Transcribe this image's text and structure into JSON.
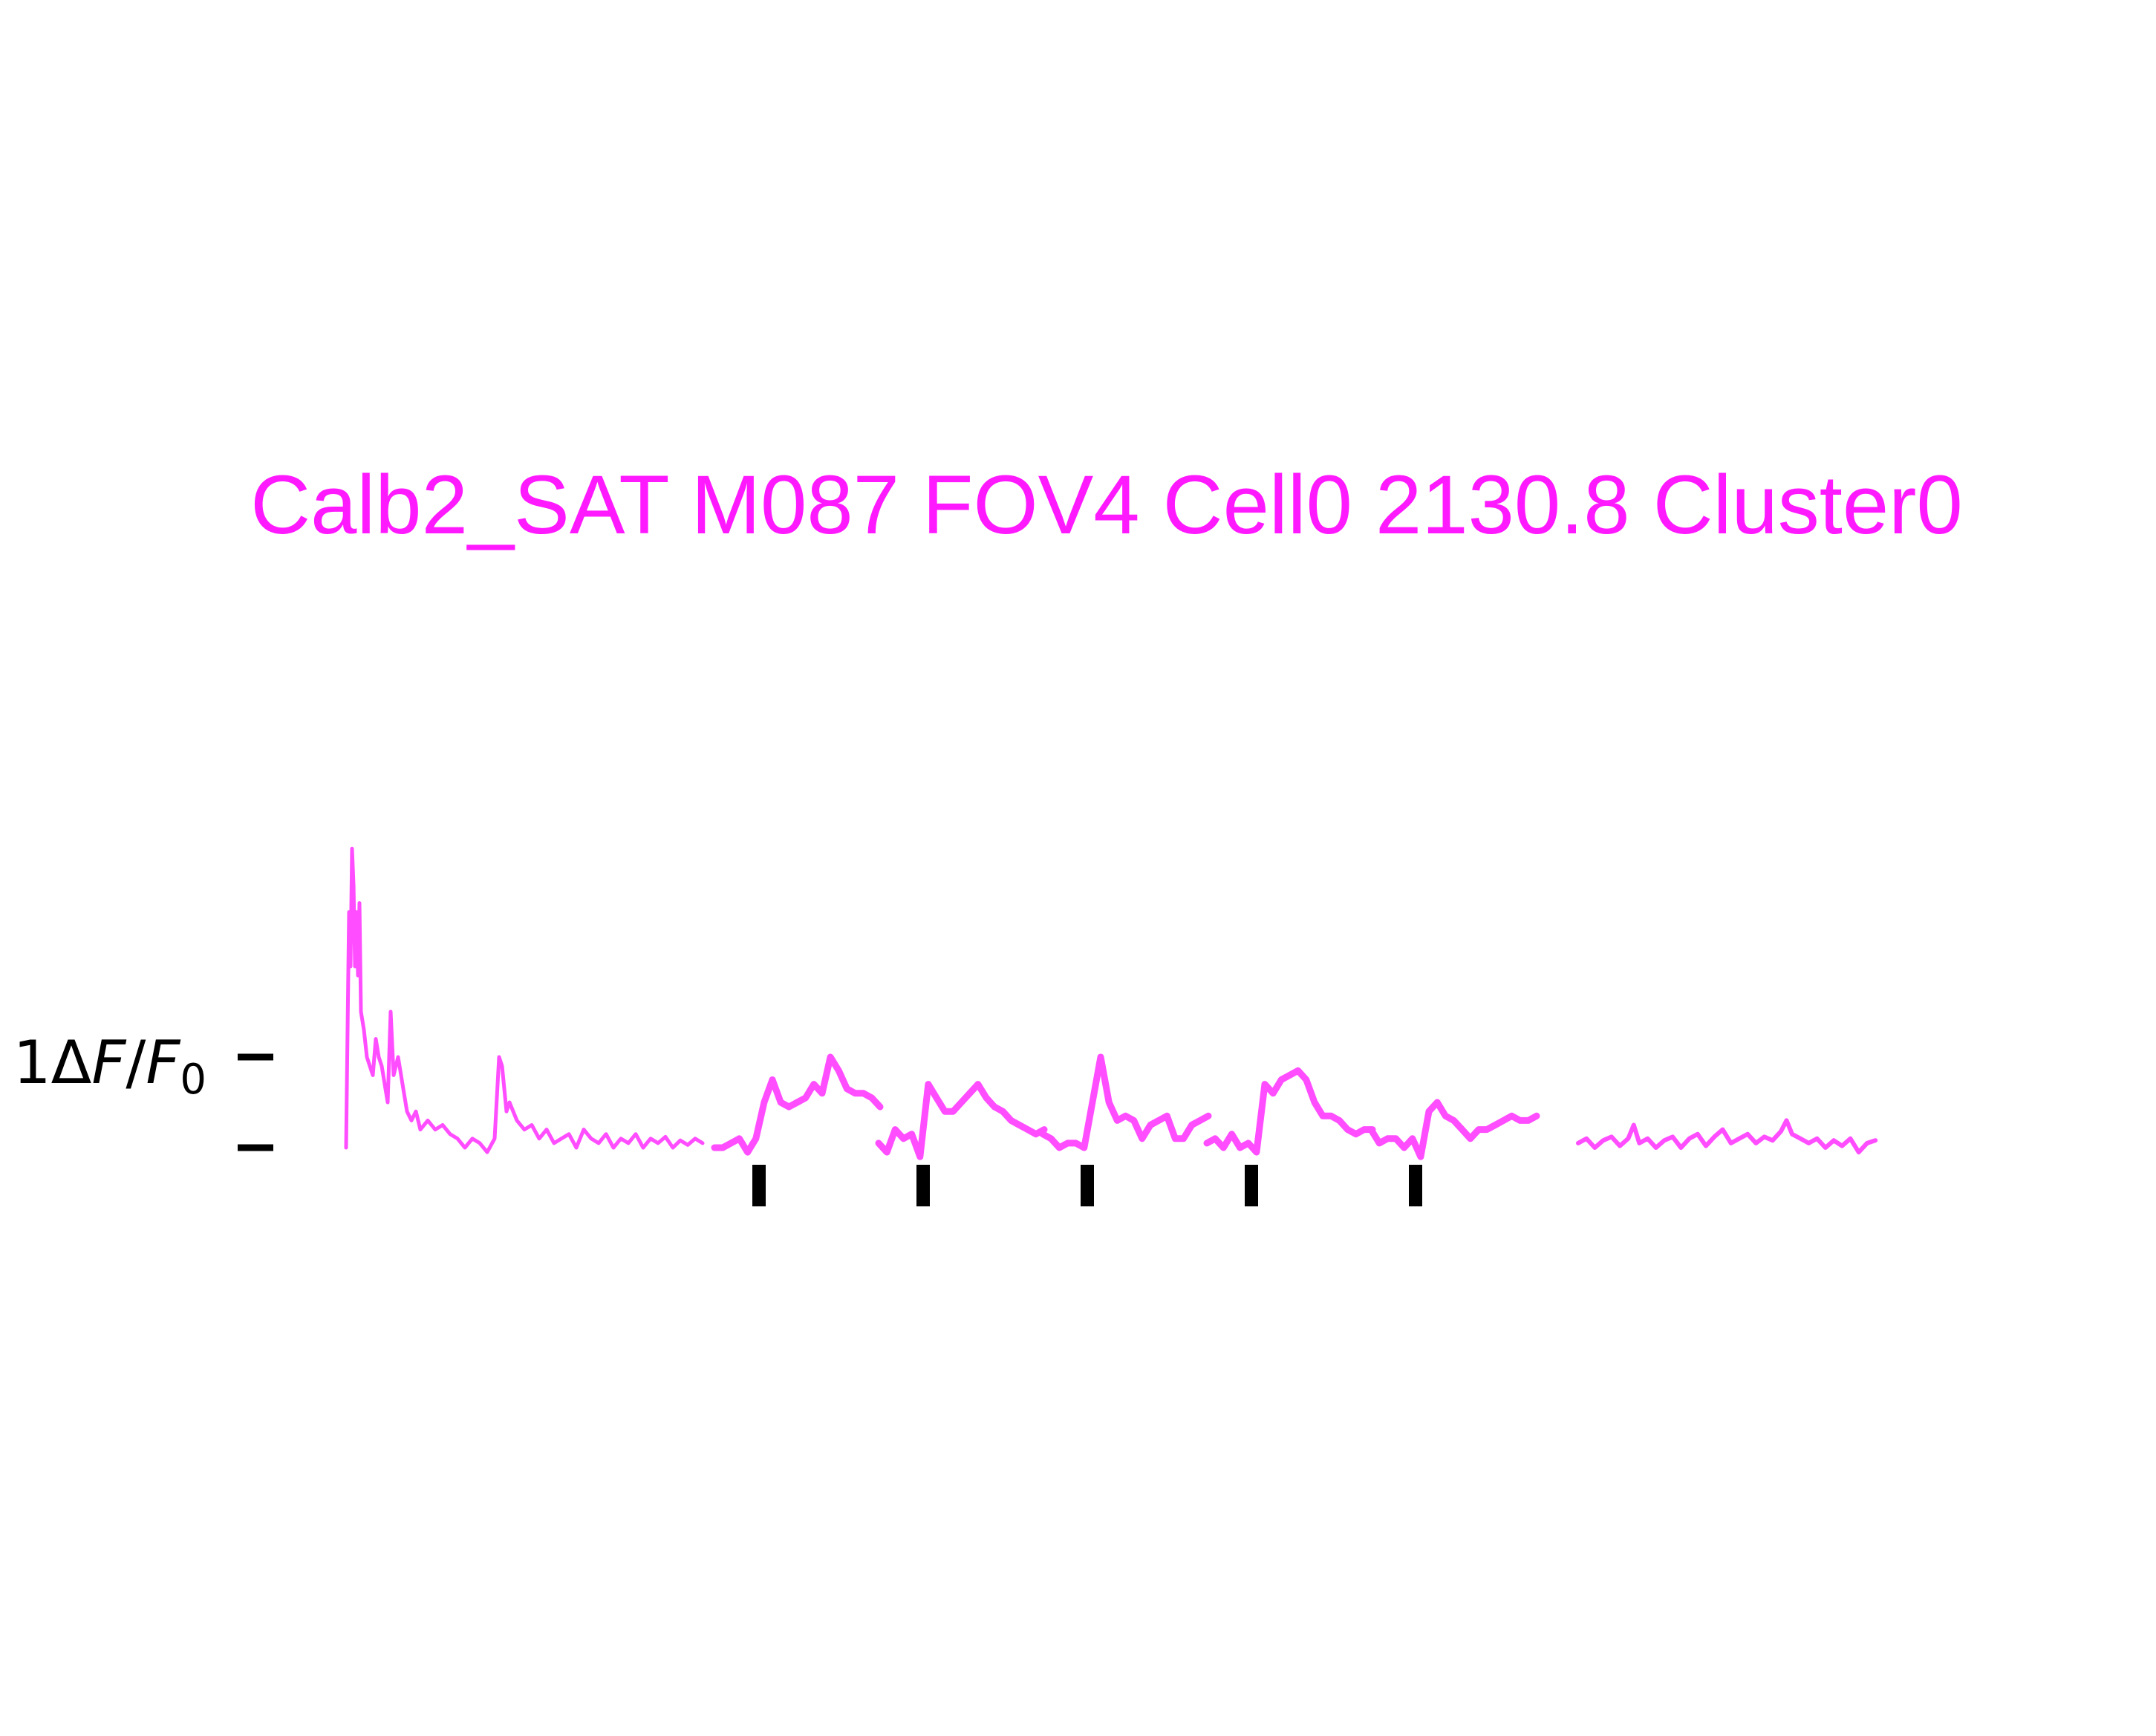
{
  "chart_data": {
    "type": "line",
    "title": "Calb2_SAT M087 FOV4 Cell0 2130.8 Cluster0",
    "ylabel": {
      "prefix": "1",
      "delta": "Δ",
      "num": "F",
      "slash": "/",
      "den": "F",
      "sub": "0"
    },
    "ylim": [
      -0.3,
      2.75
    ],
    "scale_bar": {
      "bottom": 0,
      "top": 1
    },
    "grid": false,
    "legend": "none",
    "colors": {
      "title": "#ff19ff",
      "trace": "#ff4dff",
      "marks": "#000000"
    },
    "stimulus_marks_count": 5,
    "series": [
      {
        "segment": "baseline-pre",
        "x": [
          0,
          2,
          3,
          4,
          5,
          6,
          7,
          8,
          9,
          10,
          12,
          14,
          16,
          18,
          20,
          22,
          24,
          26,
          28,
          30,
          32,
          35,
          38,
          41,
          44,
          47,
          50,
          55,
          60,
          65,
          70,
          75,
          80,
          85,
          90,
          95,
          100,
          103,
          105,
          108,
          110,
          115,
          120,
          125,
          130,
          135,
          140,
          145,
          150,
          155,
          160,
          165,
          170,
          175,
          180,
          185,
          190,
          195,
          200,
          205,
          210,
          215,
          220,
          225,
          230,
          235,
          240
        ],
        "y": [
          0,
          2.6,
          2.0,
          3.3,
          2.9,
          2.0,
          2.6,
          1.9,
          2.7,
          1.5,
          1.3,
          1.0,
          0.9,
          0.8,
          1.2,
          1.0,
          0.9,
          0.7,
          0.5,
          1.5,
          0.8,
          1.0,
          0.7,
          0.4,
          0.3,
          0.4,
          0.2,
          0.3,
          0.2,
          0.25,
          0.15,
          0.1,
          0.0,
          0.1,
          0.05,
          -0.05,
          0.1,
          1.0,
          0.9,
          0.4,
          0.5,
          0.3,
          0.2,
          0.25,
          0.1,
          0.2,
          0.05,
          0.1,
          0.15,
          0.0,
          0.2,
          0.1,
          0.05,
          0.15,
          0.0,
          0.1,
          0.05,
          0.15,
          0.0,
          0.1,
          0.05,
          0.12,
          0.0,
          0.08,
          0.03,
          0.1,
          0.05
        ]
      },
      {
        "segment": "trial-1",
        "x": [
          0,
          5,
          10,
          15,
          20,
          25,
          30,
          35,
          40,
          45,
          50,
          55,
          60,
          65,
          70,
          75,
          80,
          85,
          90,
          95,
          100
        ],
        "y": [
          0,
          0.0,
          0.05,
          0.1,
          -0.05,
          0.1,
          0.5,
          0.75,
          0.5,
          0.45,
          0.5,
          0.55,
          0.7,
          0.6,
          1.0,
          0.85,
          0.65,
          0.6,
          0.6,
          0.55,
          0.45
        ]
      },
      {
        "segment": "trial-2",
        "x": [
          0,
          5,
          10,
          15,
          20,
          25,
          30,
          35,
          40,
          45,
          50,
          55,
          60,
          65,
          70,
          75,
          80,
          85,
          90,
          95,
          100
        ],
        "y": [
          0.05,
          -0.05,
          0.2,
          0.1,
          0.15,
          -0.1,
          0.7,
          0.55,
          0.4,
          0.4,
          0.5,
          0.6,
          0.7,
          0.55,
          0.45,
          0.4,
          0.3,
          0.25,
          0.2,
          0.15,
          0.2
        ]
      },
      {
        "segment": "trial-3",
        "x": [
          0,
          5,
          10,
          15,
          20,
          25,
          30,
          35,
          40,
          45,
          50,
          55,
          60,
          65,
          70,
          75,
          80,
          85,
          90,
          95,
          100
        ],
        "y": [
          0.15,
          0.1,
          0.0,
          0.05,
          0.05,
          0.0,
          0.5,
          1.0,
          0.5,
          0.3,
          0.35,
          0.3,
          0.1,
          0.25,
          0.3,
          0.35,
          0.1,
          0.1,
          0.25,
          0.3,
          0.35
        ]
      },
      {
        "segment": "trial-4",
        "x": [
          0,
          5,
          10,
          15,
          20,
          25,
          30,
          35,
          40,
          45,
          50,
          55,
          60,
          65,
          70,
          75,
          80,
          85,
          90,
          95,
          100
        ],
        "y": [
          0.05,
          0.1,
          0.0,
          0.15,
          0.0,
          0.05,
          -0.05,
          0.7,
          0.6,
          0.75,
          0.8,
          0.85,
          0.75,
          0.5,
          0.35,
          0.35,
          0.3,
          0.2,
          0.15,
          0.2,
          0.2
        ]
      },
      {
        "segment": "trial-5",
        "x": [
          0,
          5,
          10,
          15,
          20,
          25,
          30,
          35,
          40,
          45,
          50,
          55,
          60,
          65,
          70,
          75,
          80,
          85,
          90,
          95,
          100
        ],
        "y": [
          0.2,
          0.05,
          0.1,
          0.1,
          0.0,
          0.1,
          -0.1,
          0.4,
          0.5,
          0.35,
          0.3,
          0.2,
          0.1,
          0.2,
          0.2,
          0.25,
          0.3,
          0.35,
          0.3,
          0.3,
          0.35
        ]
      },
      {
        "segment": "baseline-post",
        "x": [
          0,
          6,
          12,
          18,
          24,
          30,
          36,
          40,
          44,
          50,
          56,
          62,
          68,
          74,
          80,
          86,
          92,
          98,
          104,
          110,
          116,
          122,
          128,
          134,
          140,
          146,
          150,
          154,
          160,
          166,
          172,
          178,
          184,
          190,
          196,
          202,
          208,
          214
        ],
        "y": [
          0.05,
          0.1,
          0.0,
          0.08,
          0.12,
          0.02,
          0.1,
          0.25,
          0.05,
          0.1,
          0.0,
          0.08,
          0.12,
          0.0,
          0.1,
          0.15,
          0.02,
          0.12,
          0.2,
          0.05,
          0.1,
          0.15,
          0.05,
          0.12,
          0.08,
          0.18,
          0.3,
          0.15,
          0.1,
          0.05,
          0.1,
          0.0,
          0.08,
          0.02,
          0.1,
          -0.05,
          0.05,
          0.08
        ]
      }
    ]
  }
}
